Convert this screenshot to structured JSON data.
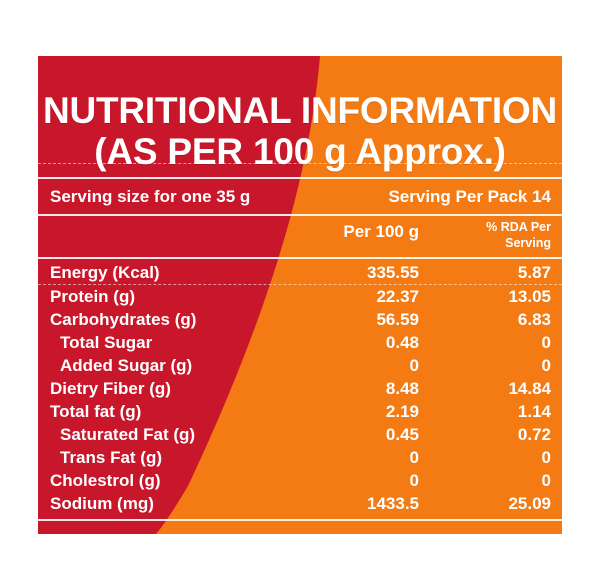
{
  "colors": {
    "red": "#c8172a",
    "orange": "#f47b14",
    "text": "#ffffff"
  },
  "title": {
    "line1": "NUTRITIONAL INFORMATION",
    "line2": "(AS PER 100 g Approx.)"
  },
  "serving": {
    "size": "Serving size for one 35 g",
    "per_pack": "Serving Per Pack 14"
  },
  "columns": {
    "per100": "Per 100 g",
    "rda_line1": "% RDA Per",
    "rda_line2": "Serving"
  },
  "rows": [
    {
      "name": "Energy (Kcal)",
      "per100": "335.55",
      "rda": "5.87"
    },
    {
      "name": "Protein (g)",
      "per100": "22.37",
      "rda": "13.05"
    },
    {
      "name": "Carbohydrates (g)",
      "per100": "56.59",
      "rda": "6.83"
    },
    {
      "name": "Total Sugar",
      "per100": "0.48",
      "rda": "0"
    },
    {
      "name": "Added Sugar (g)",
      "per100": "0",
      "rda": "0"
    },
    {
      "name": "Dietry Fiber (g)",
      "per100": "8.48",
      "rda": "14.84"
    },
    {
      "name": "Total fat (g)",
      "per100": "2.19",
      "rda": "1.14"
    },
    {
      "name": "Saturated Fat (g)",
      "per100": "0.45",
      "rda": "0.72"
    },
    {
      "name": "Trans Fat (g)",
      "per100": "0",
      "rda": "0"
    },
    {
      "name": "Cholestrol (g)",
      "per100": "0",
      "rda": "0"
    },
    {
      "name": "Sodium (mg)",
      "per100": "1433.5",
      "rda": "25.09"
    }
  ]
}
